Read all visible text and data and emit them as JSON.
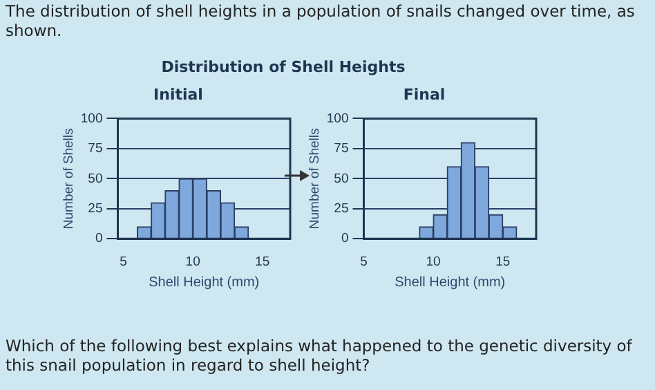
{
  "chart_data": [
    {
      "type": "histogram",
      "title": "Initial",
      "xlabel": "Shell Height (mm)",
      "ylabel": "Number of Shells",
      "bins": [
        6,
        7,
        8,
        9,
        10,
        11,
        12,
        13,
        14
      ],
      "values": [
        10,
        30,
        40,
        50,
        50,
        40,
        30,
        10
      ],
      "color": "#7fa8dc",
      "xlim": [
        4.6,
        17
      ],
      "xticks": [
        5,
        10,
        15
      ],
      "ylim": [
        0,
        100
      ],
      "yticks": [
        0,
        25,
        50,
        75,
        100
      ],
      "grid": "y",
      "legend": false,
      "annotations": [
        "The distribution of shell heights in a population of snails changed over time, as shown.",
        "Distribution of Shell Heights",
        "Which of the following best explains what happened to the genetic diversity of this snail population in regard to shell height?"
      ]
    },
    {
      "type": "histogram",
      "title": "Final",
      "xlabel": "Shell Height (mm)",
      "ylabel": "Number of Shells",
      "bins": [
        9,
        10,
        11,
        12,
        13,
        14,
        15,
        16
      ],
      "values": [
        10,
        20,
        60,
        80,
        60,
        20,
        10
      ],
      "color": "#7fa8dc",
      "xlim": [
        5,
        17.4
      ],
      "xticks": [
        5,
        10,
        15
      ],
      "ylim": [
        0,
        100
      ],
      "yticks": [
        0,
        25,
        50,
        75,
        100
      ],
      "grid": "y",
      "legend": false
    }
  ]
}
